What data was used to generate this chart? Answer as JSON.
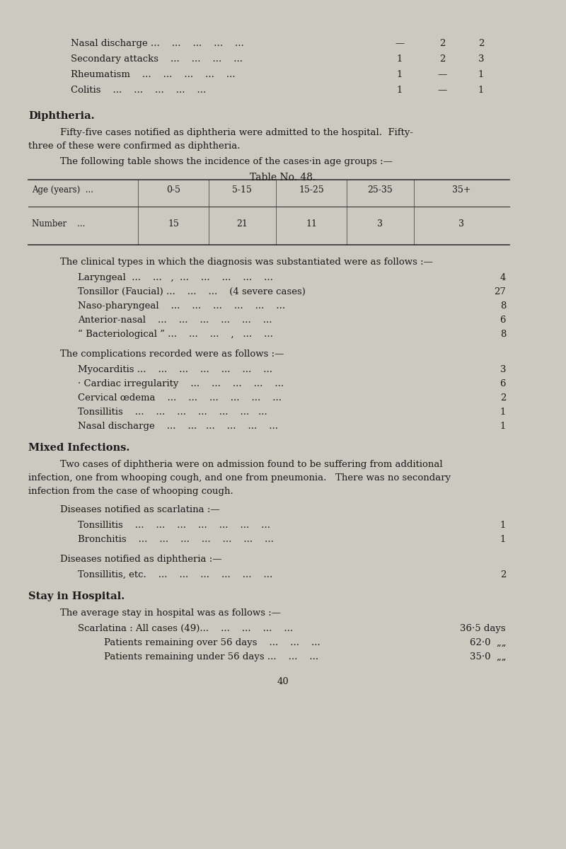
{
  "bg_color": "#ccc9c0",
  "text_color": "#1a1a1a",
  "page_number": "40",
  "top_items": [
    {
      "label": "Nasal discharge ...    ...    ...    ...    ...",
      "col1": "—",
      "col2": "2",
      "col3": "2"
    },
    {
      "label": "Secondary attacks    ...    ...    ...    ...",
      "col1": "1",
      "col2": "2",
      "col3": "3"
    },
    {
      "label": "Rheumatism    ...    ...    ...    ...    ...",
      "col1": "1",
      "col2": "—",
      "col3": "1"
    },
    {
      "label": "Colitis    ...    ...    ...    ...    ...",
      "col1": "1",
      "col2": "—",
      "col3": "1"
    }
  ],
  "diphtheria_heading": "Diphtheria.",
  "para1_line1": "Fifty-five cases notified as diphtheria were admitted to the hospital.  Fifty-",
  "para1_line2": "three of these were confirmed as diphtheria.",
  "para2": "The following table shows the incidence of the cases·in age groups :—",
  "table_title": "Tᴀʙʟᴇ Nᴏ. 48.",
  "table_headers": [
    "Age (years)  ...",
    "0-5",
    "5-15",
    "15-25",
    "25-35",
    "35+"
  ],
  "table_row_label": "Number    ...",
  "table_row_values": [
    "15",
    "21",
    "11",
    "3",
    "3"
  ],
  "clinical_intro": "The clinical types in which the diagnosis was substantiated were as follows :—",
  "clinical_items": [
    {
      "label": "Laryngeal  ...    ...   ,  ...    ...    ...    ...    ...",
      "value": "4"
    },
    {
      "label": "Tonsillor (Faucial) ...    ...    ...    (4 severe cases)",
      "value": "27"
    },
    {
      "label": "Naso-pharyngeal    ...    ...    ...    ...    ...    ...",
      "value": "8"
    },
    {
      "label": "Anterior-nasal    ...    ...    ...    ...    ...    ...",
      "value": "6"
    },
    {
      "label": "“ Bacteriological ” ...    ...    ...    ,   ...    ...",
      "value": "8"
    }
  ],
  "complications_intro": "The complications recorded were as follows :—",
  "complications_items": [
    {
      "label": "Myocarditis ...    ...    ...    ...    ...    ...    ...",
      "value": "3"
    },
    {
      "label": "· Cardiac irregularity    ...    ...    ...    ...    ...",
      "value": "6"
    },
    {
      "label": "Cervical œdema    ...    ...    ...    ...    ...    ...",
      "value": "2"
    },
    {
      "label": "Tonsillitis    ...    ...    ...    ...    ...    ...   ...",
      "value": "1"
    },
    {
      "label": "Nasal discharge    ...    ...   ...    ...    ...    ...",
      "value": "1"
    }
  ],
  "mixed_heading": "Mixed Infections.",
  "mixed_line1": "Two cases of diphtheria were on admission found to be suffering from additional",
  "mixed_line2": "infection, one from whooping cough, and one from pneumonia.   There was no secondary",
  "mixed_line3": "infection from the case of whooping cough.",
  "diseases_scarlatina_heading": "Diseases notified as scarlatina :—",
  "diseases_scarlatina_items": [
    {
      "label": "Tonsillitis    ...    ...    ...    ...    ...    ...    ...",
      "value": "1"
    },
    {
      "label": "Bronchitis    ...    ...    ...    ...    ...    ...    ...",
      "value": "1"
    }
  ],
  "diseases_diphtheria_heading": "Diseases notified as diphtheria :—",
  "diseases_diphtheria_items": [
    {
      "label": "Tonsillitis, etc.    ...    ...    ...    ...    ...    ...",
      "value": "2"
    }
  ],
  "stay_heading": "Stay in Hospital.",
  "stay_intro": "The average stay in hospital was as follows :—",
  "stay_items": [
    {
      "label": "Scarlatina : All cases (49)...    ...    ...    ...    ...",
      "value": "36·5 days"
    },
    {
      "label": "    Patients remaining over 56 days    ...    ...    ...",
      "value": "62·0  „„"
    },
    {
      "label": "    Patients remaining under 56 days ...    ...    ...",
      "value": "35·0  „„"
    }
  ]
}
